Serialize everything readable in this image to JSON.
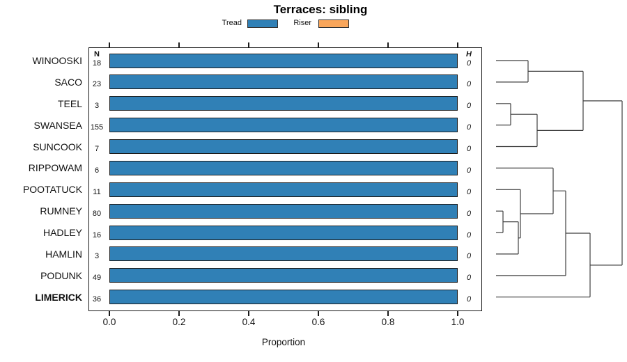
{
  "title": "Terraces: sibling",
  "chart_data": {
    "type": "bar",
    "orientation": "horizontal",
    "title": "Terraces: sibling",
    "xlabel": "Proportion",
    "xlim": [
      0.0,
      1.0
    ],
    "xticks": [
      "0.0",
      "0.2",
      "0.4",
      "0.6",
      "0.8",
      "1.0"
    ],
    "xtick_values": [
      0.0,
      0.2,
      0.4,
      0.6,
      0.8,
      1.0
    ],
    "grid": false,
    "legend_position": "top",
    "n_header": "N",
    "h_header": "H",
    "series": [
      {
        "name": "Tread",
        "color": "#3080B6"
      },
      {
        "name": "Riser",
        "color": "#F9A65B"
      }
    ],
    "rows": [
      {
        "label": "WINOOSKI",
        "n": "18",
        "tread": 1.0,
        "riser": 0.0,
        "h": "0",
        "bold": false
      },
      {
        "label": "SACO",
        "n": "23",
        "tread": 1.0,
        "riser": 0.0,
        "h": "0",
        "bold": false
      },
      {
        "label": "TEEL",
        "n": "3",
        "tread": 1.0,
        "riser": 0.0,
        "h": "0",
        "bold": false
      },
      {
        "label": "SWANSEA",
        "n": "155",
        "tread": 1.0,
        "riser": 0.0,
        "h": "0",
        "bold": false
      },
      {
        "label": "SUNCOOK",
        "n": "7",
        "tread": 1.0,
        "riser": 0.0,
        "h": "0",
        "bold": false
      },
      {
        "label": "RIPPOWAM",
        "n": "6",
        "tread": 1.0,
        "riser": 0.0,
        "h": "0",
        "bold": false
      },
      {
        "label": "POOTATUCK",
        "n": "11",
        "tread": 1.0,
        "riser": 0.0,
        "h": "0",
        "bold": false
      },
      {
        "label": "RUMNEY",
        "n": "80",
        "tread": 1.0,
        "riser": 0.0,
        "h": "0",
        "bold": false
      },
      {
        "label": "HADLEY",
        "n": "16",
        "tread": 1.0,
        "riser": 0.0,
        "h": "0",
        "bold": false
      },
      {
        "label": "HAMLIN",
        "n": "3",
        "tread": 1.0,
        "riser": 0.0,
        "h": "0",
        "bold": false
      },
      {
        "label": "PODUNK",
        "n": "49",
        "tread": 1.0,
        "riser": 0.0,
        "h": "0",
        "bold": false
      },
      {
        "label": "LIMERICK",
        "n": "36",
        "tread": 1.0,
        "riser": 0.0,
        "h": "0",
        "bold": true
      }
    ]
  },
  "dendrogram": {
    "newick": "(((WINOOSKI,SACO),((TEEL,SWANSEA),SUNCOOK)),(((RIPPOWAM,(POOTATUCK,((RUMNEY,HADLEY),HAMLIN))),PODUNK),LIMERICK));",
    "line_color": "#3e3e3e",
    "segments": [
      [
        712,
        87.0,
        758,
        87.0
      ],
      [
        712,
        117.9,
        758,
        117.9
      ],
      [
        758,
        87.0,
        758,
        117.9
      ],
      [
        758,
        102.4,
        837,
        102.4
      ],
      [
        712,
        148.8,
        733,
        148.8
      ],
      [
        712,
        179.6,
        733,
        179.6
      ],
      [
        733,
        148.8,
        733,
        179.6
      ],
      [
        733,
        164.2,
        771,
        164.2
      ],
      [
        712,
        210.5,
        771,
        210.5
      ],
      [
        771,
        164.2,
        771,
        210.5
      ],
      [
        771,
        187.4,
        837,
        187.4
      ],
      [
        837,
        102.4,
        837,
        187.4
      ],
      [
        837,
        144.9,
        893,
        144.9
      ],
      [
        712,
        241.4,
        794,
        241.4
      ],
      [
        712,
        272.3,
        747,
        272.3
      ],
      [
        712,
        303.2,
        722,
        303.2
      ],
      [
        712,
        334.0,
        722,
        334.0
      ],
      [
        722,
        303.2,
        722,
        334.0
      ],
      [
        722,
        318.6,
        744,
        318.6
      ],
      [
        712,
        364.9,
        744,
        364.9
      ],
      [
        744,
        318.6,
        744,
        364.9
      ],
      [
        744,
        341.8,
        747,
        341.8
      ],
      [
        747,
        272.3,
        747,
        341.8
      ],
      [
        747,
        307.0,
        794,
        307.0
      ],
      [
        794,
        241.4,
        794,
        307.0
      ],
      [
        794,
        274.2,
        812,
        274.2
      ],
      [
        712,
        395.8,
        812,
        395.8
      ],
      [
        812,
        274.2,
        812,
        395.8
      ],
      [
        812,
        335.0,
        847,
        335.0
      ],
      [
        712,
        426.7,
        847,
        426.7
      ],
      [
        847,
        335.0,
        847,
        426.7
      ],
      [
        847,
        380.9,
        893,
        380.9
      ],
      [
        893,
        144.9,
        893,
        380.9
      ]
    ]
  }
}
